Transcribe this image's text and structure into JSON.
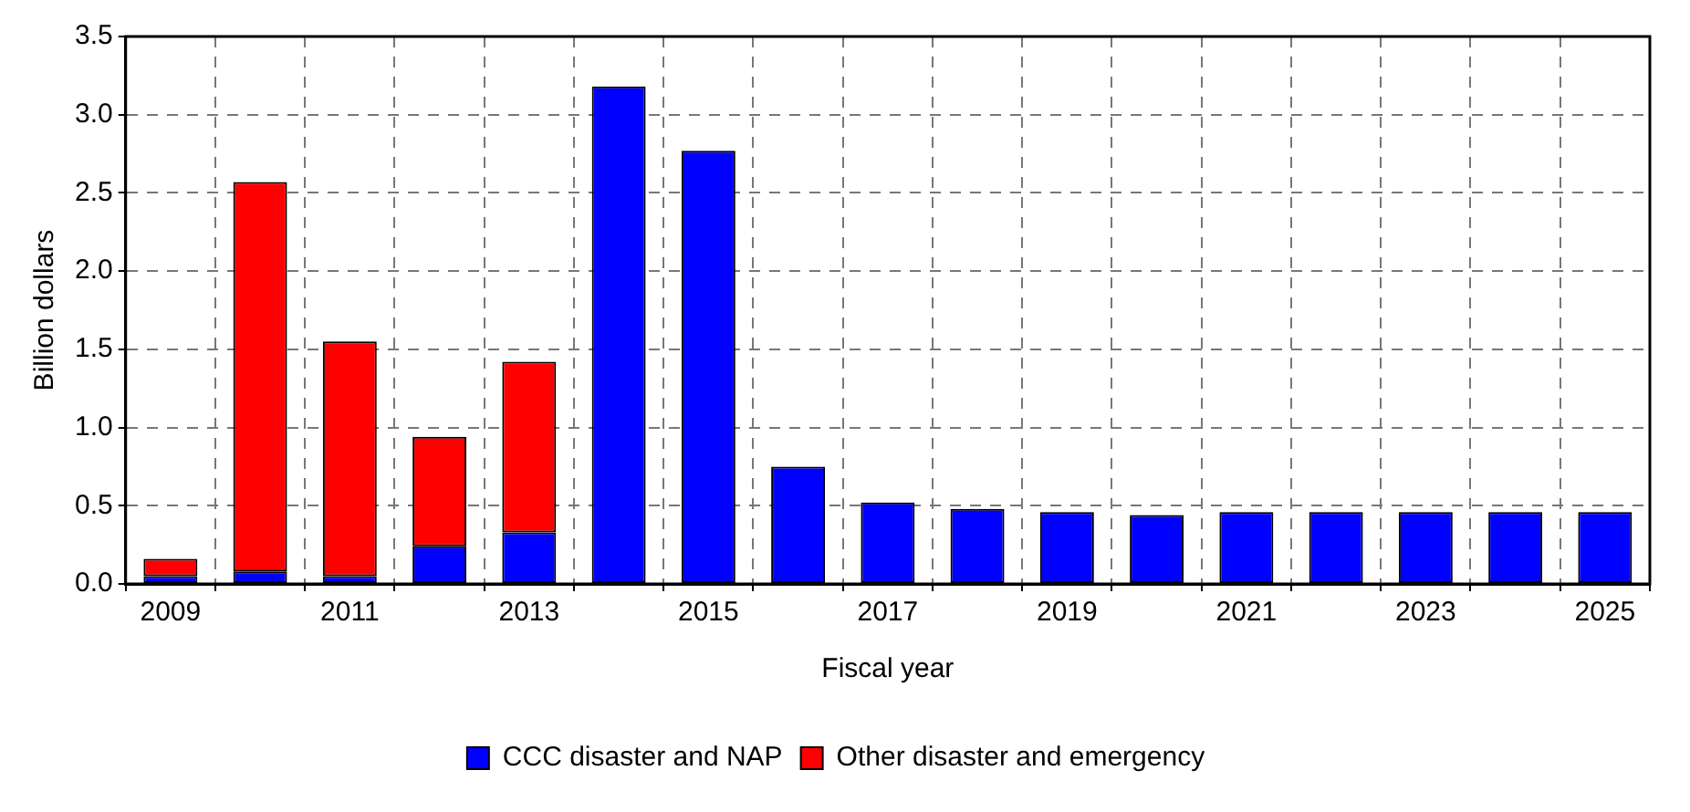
{
  "chart_data": {
    "type": "bar",
    "xlabel": "Fiscal year",
    "ylabel": "Billion dollars",
    "categories": [
      "2009",
      null,
      "2011",
      null,
      "2013",
      null,
      "2015",
      null,
      "2017",
      null,
      "2019",
      null,
      "2021",
      null,
      "2023",
      null,
      "2025"
    ],
    "series": [
      {
        "name": "CCC disaster and NAP",
        "color": "#0000ff",
        "values": [
          0.05,
          0.08,
          0.05,
          0.24,
          0.33,
          3.18,
          2.77,
          0.75,
          0.52,
          0.48,
          0.46,
          0.44,
          0.46,
          0.46,
          0.46,
          0.46,
          0.46
        ]
      },
      {
        "name": "Other disaster and emergency",
        "color": "#ff0000",
        "values": [
          0.11,
          2.49,
          1.5,
          0.7,
          1.09,
          null,
          null,
          null,
          null,
          null,
          null,
          null,
          null,
          null,
          null,
          null,
          null
        ]
      }
    ],
    "stacked": true,
    "ylim": [
      0,
      3.5
    ],
    "yticks": [
      {
        "value": 0,
        "label": "0.0"
      },
      {
        "value": 0.5,
        "label": "0.5"
      },
      {
        "value": 1,
        "label": "1.0"
      },
      {
        "value": 1.5,
        "label": "1.5"
      },
      {
        "value": 2,
        "label": "2.0"
      },
      {
        "value": 2.5,
        "label": "2.5"
      },
      {
        "value": 3,
        "label": "3.0"
      },
      {
        "value": 3.5,
        "label": "3.5"
      }
    ],
    "grid": true,
    "legend": "bottom"
  }
}
